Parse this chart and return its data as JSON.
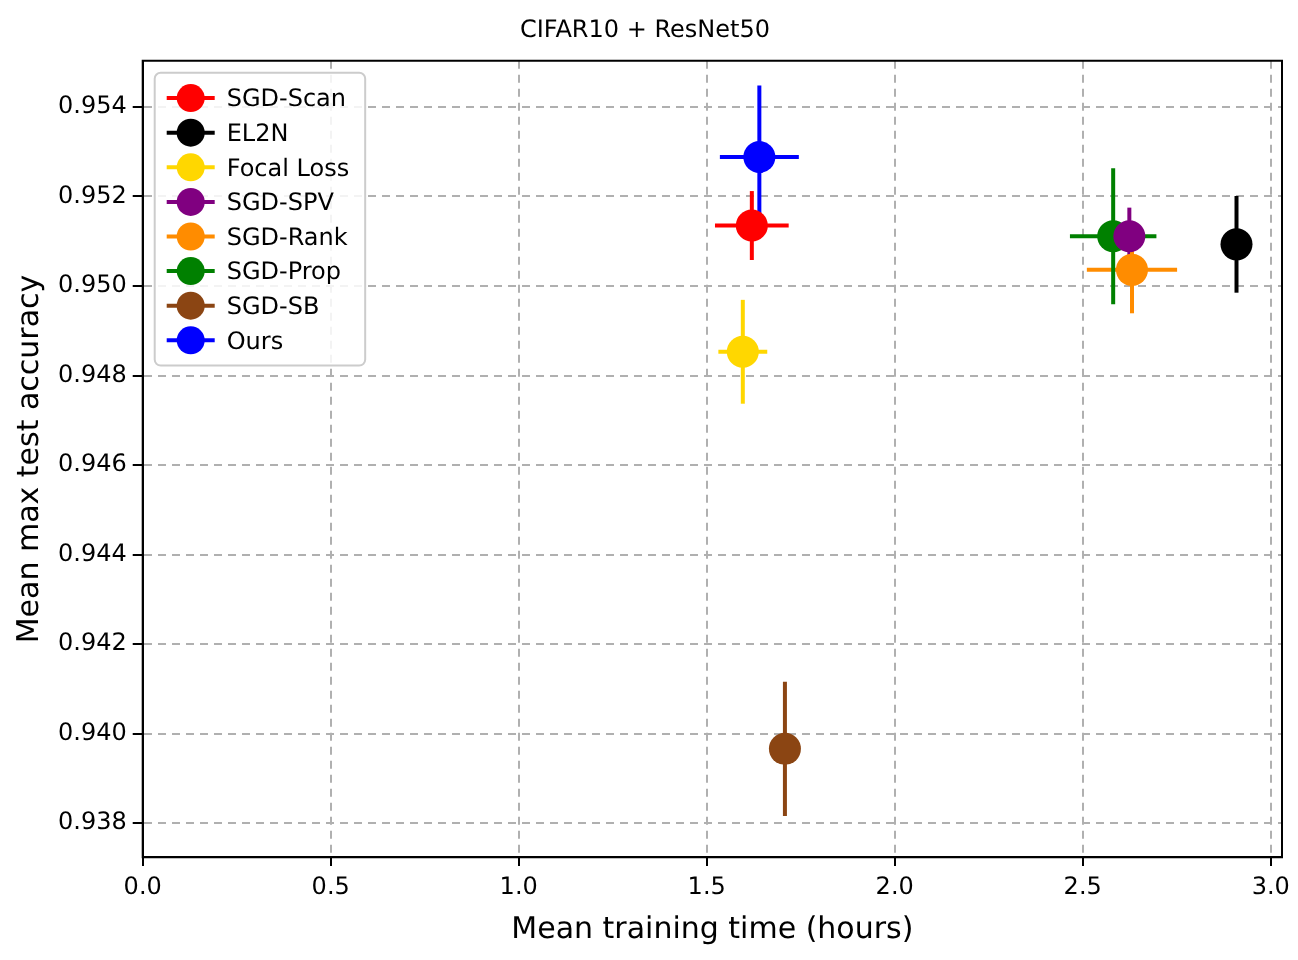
{
  "chart_data": {
    "type": "scatter",
    "title": "CIFAR10 + ResNet50",
    "xlabel": "Mean training time (hours)",
    "ylabel": "Mean max test accuracy",
    "xlim": [
      0,
      3.03
    ],
    "xticks": [
      {
        "value": 0,
        "label": "0.0"
      },
      0.5,
      {
        "value": 1,
        "label": "1.0"
      },
      1.5,
      {
        "value": 2,
        "label": "2.0"
      },
      2.5,
      {
        "value": 3,
        "label": "3.0"
      }
    ],
    "ylim": [
      0.93724,
      0.95503
    ],
    "yticks": [
      0.938,
      {
        "value": 0.94,
        "label": "0.940"
      },
      0.942,
      0.944,
      0.946,
      0.948,
      {
        "value": 0.95,
        "label": "0.950"
      },
      0.952,
      0.954
    ],
    "grid": true,
    "legend": "top left",
    "marker": "circle",
    "series": [
      {
        "name": "SGD-Scan",
        "color": "#ff0000",
        "x": [
          1.62
        ],
        "values": [
          0.95135
        ],
        "errors": [
          0.00077
        ],
        "xerrors": [
          0.098
        ]
      },
      {
        "name": "EL2N",
        "color": "#000000",
        "x": [
          2.909
        ],
        "values": [
          0.95093
        ],
        "errors": [
          0.00108
        ],
        "xerrors": [
          0.03
        ]
      },
      {
        "name": "Focal Loss",
        "color": "#ffd700",
        "x": [
          1.596
        ],
        "values": [
          0.94853
        ],
        "errors": [
          0.00116
        ],
        "xerrors": [
          0.065
        ]
      },
      {
        "name": "SGD-SPV",
        "color": "#800080",
        "x": [
          2.624
        ],
        "values": [
          0.95111
        ],
        "errors": [
          0.00064
        ],
        "xerrors": [
          null
        ]
      },
      {
        "name": "SGD-Rank",
        "color": "#ff8c00",
        "x": [
          2.631
        ],
        "values": [
          0.95036
        ],
        "errors": [
          0.00097
        ],
        "xerrors": [
          0.12
        ]
      },
      {
        "name": "SGD-Prop",
        "color": "#008000",
        "x": [
          2.581
        ],
        "values": [
          0.95111
        ],
        "errors": [
          0.00152
        ],
        "xerrors": [
          0.115
        ]
      },
      {
        "name": "SGD-SB",
        "color": "#8b4513",
        "x": [
          1.708
        ],
        "values": [
          0.93966
        ],
        "errors": [
          0.0015
        ],
        "xerrors": [
          0.0
        ]
      },
      {
        "name": "Ours",
        "color": "#0000ff",
        "x": [
          1.64
        ],
        "values": [
          0.95288
        ],
        "errors": [
          0.0016
        ],
        "xerrors": [
          0.105
        ]
      }
    ]
  }
}
